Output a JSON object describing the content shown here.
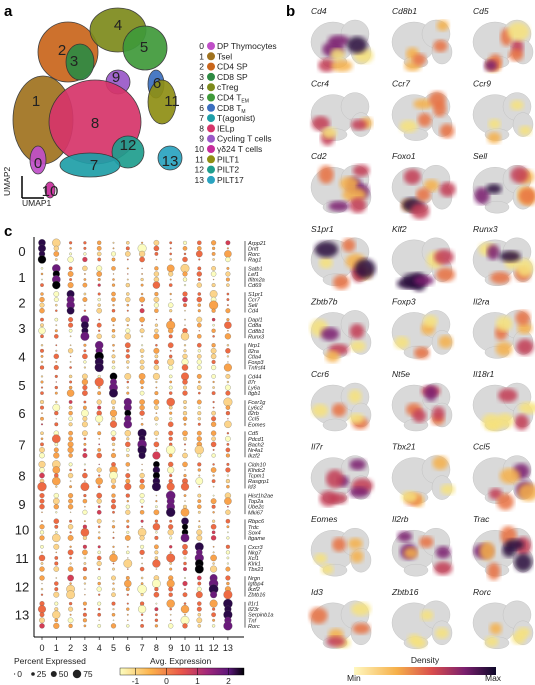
{
  "panels": {
    "a": "a",
    "b": "b",
    "c": "c"
  },
  "umap": {
    "xlabel": "UMAP1",
    "ylabel": "UMAP2",
    "clusters": [
      {
        "id": "0",
        "name": "DP Thymocytes",
        "color": "#c04fc8"
      },
      {
        "id": "1",
        "name": "Tsel",
        "color": "#a0731f"
      },
      {
        "id": "2",
        "name": "CD4 SP",
        "color": "#c9661c"
      },
      {
        "id": "3",
        "name": "CD8 SP",
        "color": "#2e8a43"
      },
      {
        "id": "4",
        "name": "cTreg",
        "color": "#7d8a1c"
      },
      {
        "id": "5",
        "name": "CD4 T",
        "sub": "EM",
        "color": "#3f9a3a"
      },
      {
        "id": "6",
        "name": "CD8 T",
        "sub": "M",
        "color": "#3b6fc0"
      },
      {
        "id": "7",
        "name": "T(agonist)",
        "color": "#1f9fa8"
      },
      {
        "id": "8",
        "name": "IELp",
        "color": "#d6356a"
      },
      {
        "id": "9",
        "name": "Cycling T cells",
        "color": "#9a58c8"
      },
      {
        "id": "10",
        "name": "γδ24 T cells",
        "color": "#c72d9c"
      },
      {
        "id": "11",
        "name": "PILT1",
        "color": "#8f8f14"
      },
      {
        "id": "12",
        "name": "PILT2",
        "color": "#1f9e8e"
      },
      {
        "id": "13",
        "name": "PILT17",
        "color": "#2aa3c0"
      }
    ]
  },
  "density": {
    "legend_title": "Density",
    "min_label": "Min",
    "max_label": "Max",
    "genes": [
      "Cd4",
      "Cd8b1",
      "Cd5",
      "Ccr4",
      "Ccr7",
      "Ccr9",
      "Cd2",
      "Foxo1",
      "Sell",
      "S1pr1",
      "Klf2",
      "Runx3",
      "Zbtb7b",
      "Foxp3",
      "Il2ra",
      "Ccr6",
      "Nt5e",
      "Il18r1",
      "Il7r",
      "Tbx21",
      "Ccl5",
      "Eomes",
      "Il2rb",
      "Trac",
      "Id3",
      "Zbtb16",
      "Rorc"
    ],
    "intensity": [
      0.8,
      0.35,
      0.75,
      0.45,
      0.65,
      0.15,
      0.9,
      0.7,
      0.7,
      0.9,
      0.7,
      0.7,
      0.65,
      0.35,
      0.5,
      0.35,
      0.6,
      0.55,
      0.8,
      0.35,
      0.65,
      0.35,
      0.6,
      0.95,
      0.55,
      0.15,
      0.2
    ]
  },
  "chart_data": {
    "type": "dot",
    "clusters_x": [
      "0",
      "1",
      "2",
      "3",
      "4",
      "5",
      "6",
      "7",
      "8",
      "9",
      "10",
      "11",
      "12",
      "13"
    ],
    "gene_groups": [
      {
        "cluster": "0",
        "genes": [
          "Arpp21",
          "Dntt",
          "Rorc",
          "Rag1"
        ]
      },
      {
        "cluster": "1",
        "genes": [
          "Satb1",
          "Lef1",
          "Ifitm2a",
          "Cd69"
        ]
      },
      {
        "cluster": "2",
        "genes": [
          "S1pr1",
          "Ccr7",
          "Sell",
          "Cd4"
        ]
      },
      {
        "cluster": "3",
        "genes": [
          "Dapl1",
          "Cd8a",
          "Cd8b1",
          "Runx3"
        ]
      },
      {
        "cluster": "4",
        "genes": [
          "Nrp1",
          "Il2ra",
          "Ctla4",
          "Foxp3",
          "Tnfrsf4"
        ]
      },
      {
        "cluster": "5",
        "genes": [
          "Cd44",
          "Il7r",
          "Ly6a",
          "Itgb1"
        ]
      },
      {
        "cluster": "6",
        "genes": [
          "Fcer1g",
          "Ly6c2",
          "Il2rb",
          "Ccl5",
          "Eomes"
        ]
      },
      {
        "cluster": "7",
        "genes": [
          "Cd5",
          "Pdcd1",
          "Bach2",
          "Nr4a1",
          "Ikzf2"
        ]
      },
      {
        "cluster": "8",
        "genes": [
          "Cldn10",
          "Klhdc2",
          "Tcpm1",
          "Rasgrp1",
          "Id3"
        ]
      },
      {
        "cluster": "9",
        "genes": [
          "Hist1h2ae",
          "Top2a",
          "Ube2c",
          "Mki67"
        ]
      },
      {
        "cluster": "10",
        "genes": [
          "Rbpc6",
          "Trdc",
          "Sox4",
          "Itgame"
        ]
      },
      {
        "cluster": "11",
        "genes": [
          "Cxcr3",
          "Nkg7",
          "Xcl1",
          "Klrk1",
          "Tbx21"
        ]
      },
      {
        "cluster": "12",
        "genes": [
          "Nrgn",
          "Igfbp4",
          "Ikzf2",
          "Zbtb16"
        ]
      },
      {
        "cluster": "13",
        "genes": [
          "Il1r1",
          "Il23r",
          "Serpinb1a",
          "Tnf",
          "Rorc"
        ]
      }
    ],
    "size_legend_title": "Percent Expressed",
    "size_legend_values": [
      0,
      25,
      50,
      75
    ],
    "color_legend_title": "Avg. Expression",
    "color_ticks": [
      -1,
      0,
      1,
      2
    ],
    "color_range": [
      -1.5,
      2.5
    ]
  }
}
